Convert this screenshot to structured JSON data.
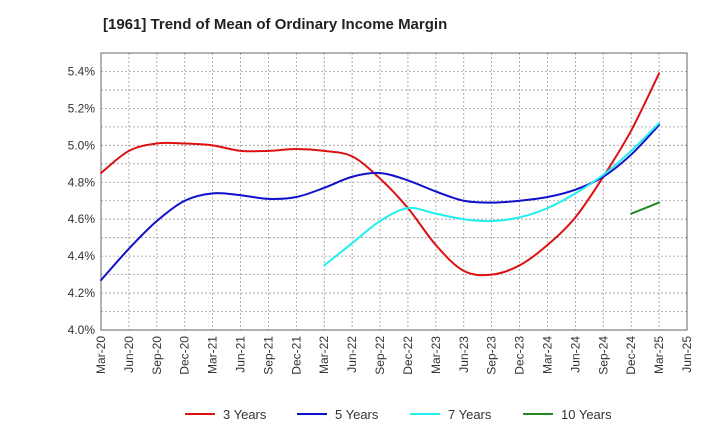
{
  "chart_data": {
    "type": "line",
    "title": "[1961]  Trend of Mean of Ordinary Income Margin",
    "xlabel": "",
    "ylabel": "",
    "x_ticks": [
      "Mar-20",
      "Jun-20",
      "Sep-20",
      "Dec-20",
      "Mar-21",
      "Jun-21",
      "Sep-21",
      "Dec-21",
      "Mar-22",
      "Jun-22",
      "Sep-22",
      "Dec-22",
      "Mar-23",
      "Jun-23",
      "Sep-23",
      "Dec-23",
      "Mar-24",
      "Jun-24",
      "Sep-24",
      "Dec-24",
      "Mar-25",
      "Jun-25"
    ],
    "y_ticks": [
      "4.0%",
      "4.2%",
      "4.4%",
      "4.6%",
      "4.8%",
      "5.0%",
      "5.2%",
      "5.4%"
    ],
    "ylim": [
      4.0,
      5.5
    ],
    "grid": true,
    "legend_position": "bottom",
    "series": [
      {
        "name": "3 Years",
        "color": "#dd1111",
        "x": [
          "Mar-20",
          "Jun-20",
          "Sep-20",
          "Dec-20",
          "Mar-21",
          "Jun-21",
          "Sep-21",
          "Dec-21",
          "Mar-22",
          "Jun-22",
          "Sep-22",
          "Dec-22",
          "Mar-23",
          "Jun-23",
          "Sep-23",
          "Dec-23",
          "Mar-24",
          "Jun-24",
          "Sep-24",
          "Dec-24",
          "Mar-25"
        ],
        "values": [
          4.85,
          4.97,
          5.01,
          5.01,
          5.0,
          4.97,
          4.97,
          4.98,
          4.97,
          4.94,
          4.82,
          4.66,
          4.46,
          4.32,
          4.3,
          4.35,
          4.46,
          4.61,
          4.83,
          5.08,
          5.39
        ]
      },
      {
        "name": "5 Years",
        "color": "#1111cc",
        "x": [
          "Mar-20",
          "Jun-20",
          "Sep-20",
          "Dec-20",
          "Mar-21",
          "Jun-21",
          "Sep-21",
          "Dec-21",
          "Mar-22",
          "Jun-22",
          "Sep-22",
          "Dec-22",
          "Mar-23",
          "Jun-23",
          "Sep-23",
          "Dec-23",
          "Mar-24",
          "Jun-24",
          "Sep-24",
          "Dec-24",
          "Mar-25"
        ],
        "values": [
          4.27,
          4.44,
          4.59,
          4.7,
          4.74,
          4.73,
          4.71,
          4.72,
          4.77,
          4.83,
          4.85,
          4.81,
          4.75,
          4.7,
          4.69,
          4.7,
          4.72,
          4.76,
          4.83,
          4.95,
          5.11
        ]
      },
      {
        "name": "7 Years",
        "color": "#22eeee",
        "x": [
          "Mar-22",
          "Jun-22",
          "Sep-22",
          "Dec-22",
          "Mar-23",
          "Jun-23",
          "Sep-23",
          "Dec-23",
          "Mar-24",
          "Jun-24",
          "Sep-24",
          "Dec-24",
          "Mar-25"
        ],
        "values": [
          4.35,
          4.47,
          4.59,
          4.66,
          4.63,
          4.6,
          4.59,
          4.61,
          4.66,
          4.74,
          4.84,
          4.97,
          5.12
        ]
      },
      {
        "name": "10 Years",
        "color": "#228822",
        "x": [
          "Dec-24",
          "Mar-25"
        ],
        "values": [
          4.63,
          4.69
        ]
      }
    ]
  }
}
